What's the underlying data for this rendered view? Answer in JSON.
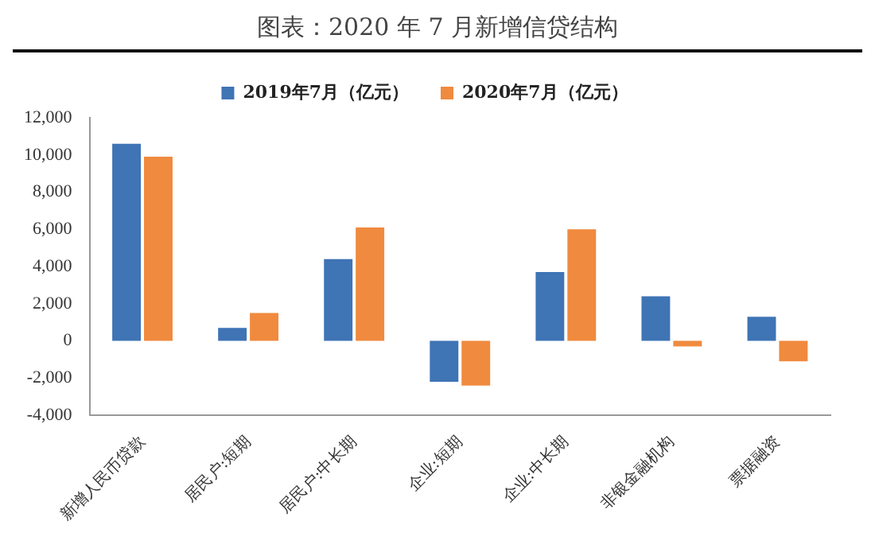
{
  "chart_data": {
    "type": "bar",
    "title": "图表：2020 年 7 月新增信贷结构",
    "categories": [
      "新增人民币贷款",
      "居民户:短期",
      "居民户:中长期",
      "企业:短期",
      "企业:中长期",
      "非银金融机构",
      "票据融资"
    ],
    "series": [
      {
        "name": "2019年7月（亿元）",
        "color": "#3f74b5",
        "values": [
          10600,
          700,
          4400,
          -2200,
          3700,
          2400,
          1300
        ]
      },
      {
        "name": "2020年7月（亿元）",
        "color": "#f08a3e",
        "values": [
          9900,
          1500,
          6100,
          -2400,
          6000,
          -300,
          -1100
        ]
      }
    ],
    "ylim": [
      -4000,
      12000
    ],
    "yticks": [
      {
        "value": -4000,
        "label": "-4,000"
      },
      {
        "value": -2000,
        "label": "-2,000"
      },
      {
        "value": 0,
        "label": "0"
      },
      {
        "value": 2000,
        "label": "2,000"
      },
      {
        "value": 4000,
        "label": "4,000"
      },
      {
        "value": 6000,
        "label": "6,000"
      },
      {
        "value": 8000,
        "label": "8,000"
      },
      {
        "value": 10000,
        "label": "10,000"
      },
      {
        "value": 12000,
        "label": "12,000"
      }
    ],
    "grid": false,
    "legend": "top"
  }
}
